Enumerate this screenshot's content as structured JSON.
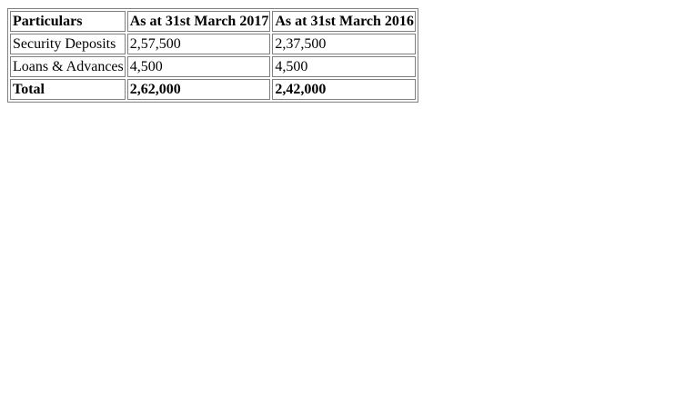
{
  "table": {
    "headers": [
      "Particulars",
      "As at 31st March 2017",
      "As at 31st March 2016"
    ],
    "rows": [
      [
        "Security Deposits",
        "2,57,500",
        "2,37,500"
      ],
      [
        "Loans & Advances",
        "4,500",
        "4,500"
      ]
    ],
    "total": [
      "Total",
      "2,62,000",
      "2,42,000"
    ]
  }
}
